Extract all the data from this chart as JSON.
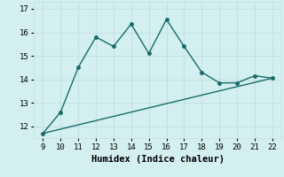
{
  "xlabel": "Humidex (Indice chaleur)",
  "background_color": "#d4efef",
  "grid_color": "#c0dede",
  "line_color": "#1a6b6b",
  "curve_x": [
    9,
    10,
    11,
    12,
    13,
    14,
    15,
    16,
    17,
    18,
    19,
    20,
    21,
    22
  ],
  "curve_y": [
    11.7,
    12.6,
    14.5,
    15.8,
    15.4,
    16.35,
    15.1,
    16.55,
    15.4,
    14.3,
    13.85,
    13.85,
    14.15,
    14.05
  ],
  "trend_x": [
    9,
    22
  ],
  "trend_y": [
    11.7,
    14.05
  ],
  "xlim": [
    8.5,
    22.5
  ],
  "ylim": [
    11.5,
    17.3
  ],
  "xticks": [
    9,
    10,
    11,
    12,
    13,
    14,
    15,
    16,
    17,
    18,
    19,
    20,
    21,
    22
  ],
  "yticks": [
    12,
    13,
    14,
    15,
    16,
    17
  ],
  "tick_fontsize": 6.5,
  "xlabel_fontsize": 7.5,
  "marker_size": 2.5,
  "line_width": 1.0
}
